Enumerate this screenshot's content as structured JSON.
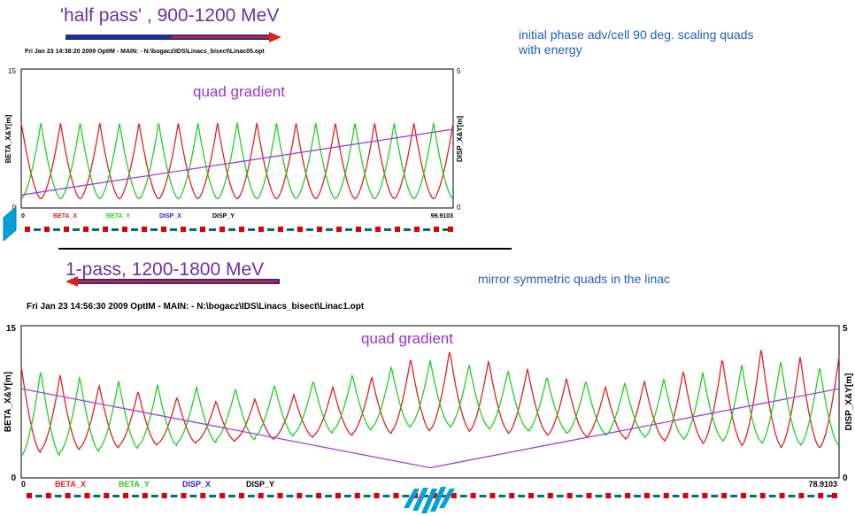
{
  "top_panel": {
    "title": "'half pass' , 900-1200 MeV",
    "note_line1": "initial phase adv/cell 90 deg. scaling quads",
    "note_line2": "with energy",
    "header": "Fri Jan 23 14:38:20 2009    OptIM - MAIN: - N:\\bogacz\\IDS\\Linacs_bisect\\Linac05.opt",
    "annotation": "quad gradient",
    "arrow_colors": {
      "bar": "#1f2f8f",
      "arrow": "#e02020"
    }
  },
  "bottom_panel": {
    "title": "1-pass, 1200-1800 MeV",
    "note": "mirror symmetric quads in the linac",
    "header": "Fri Jan 23 14:56:30 2009    OptIM - MAIN: - N:\\bogacz\\IDS\\Linacs_bisect\\Linac1.opt",
    "annotation": "quad gradient"
  },
  "chart_data": [
    {
      "type": "line",
      "ylabel_left": "BETA_X&Y[m]",
      "ylabel_right": "DISP_X&Y[m]",
      "x_tick_labels": [
        "0",
        "99.9103"
      ],
      "y_left_ticks": [
        "15",
        "0"
      ],
      "y_right_ticks": [
        "5",
        "0"
      ],
      "xlim": [
        0,
        99.9103
      ],
      "ylim_left": [
        0,
        15
      ],
      "ylim_right": [
        0,
        5
      ],
      "legend": [
        "BETA_X",
        "BETA_Y",
        "DISP_X",
        "DISP_Y"
      ],
      "series": [
        {
          "name": "BETA_X",
          "color": "#e02020",
          "periods": 11,
          "min": 1.0,
          "max": 9.2,
          "phase": 0.5
        },
        {
          "name": "BETA_Y",
          "color": "#20d020",
          "periods": 11,
          "min": 1.0,
          "max": 9.2,
          "phase": 0.0
        },
        {
          "name": "quad gradient",
          "color": "#a040e0",
          "x": [
            0,
            99.9103
          ],
          "y": [
            1.4,
            8.5
          ]
        }
      ],
      "colors": {
        "legend": [
          "#e02020",
          "#20d020",
          "#2020e0",
          "#000000"
        ],
        "magnet_red": "#e00000",
        "magnet_teal": "#007070",
        "cavity": "#00a0d8"
      }
    },
    {
      "type": "line",
      "ylabel_left": "BETA_X&Y[m]",
      "ylabel_right": "DISP_X&Y[m]",
      "x_tick_labels": [
        "0",
        "78.9103"
      ],
      "y_left_ticks": [
        "15",
        "0"
      ],
      "y_right_ticks": [
        "5",
        "0"
      ],
      "xlim": [
        0,
        78.9103
      ],
      "ylim_left": [
        0,
        15
      ],
      "ylim_right": [
        0,
        5
      ],
      "legend": [
        "BETA_X",
        "BETA_Y",
        "DISP_X",
        "DISP_Y"
      ],
      "series": [
        {
          "name": "BETA_X",
          "color": "#e02020",
          "periods": 21,
          "phase": 0.5,
          "peaks": [
            11.0,
            10.2,
            9.2,
            8.6,
            8.0,
            7.6,
            7.8,
            8.2,
            9.0,
            10.0,
            11.8,
            12.6,
            11.6,
            10.8,
            9.8,
            9.0,
            9.6,
            10.6,
            11.8,
            12.8,
            12.0
          ],
          "troughs": [
            2.5,
            2.8,
            3.0,
            3.2,
            3.4,
            3.6,
            3.8,
            4.0,
            4.2,
            4.4,
            4.6,
            4.8,
            4.6,
            4.4,
            4.2,
            4.0,
            3.8,
            3.6,
            3.4,
            3.2,
            3.0
          ]
        },
        {
          "name": "BETA_Y",
          "color": "#20d020",
          "periods": 21,
          "phase": 0.0,
          "peaks": [
            10.6,
            10.0,
            9.6,
            9.2,
            9.0,
            8.8,
            9.2,
            9.6,
            10.2,
            11.0,
            11.6,
            11.2,
            10.6,
            10.0,
            9.6,
            9.4,
            9.8,
            10.4,
            11.2,
            11.6,
            11.0
          ],
          "troughs": [
            2.2,
            2.6,
            2.9,
            3.2,
            3.5,
            3.8,
            4.1,
            4.4,
            4.7,
            5.0,
            5.2,
            5.0,
            4.8,
            4.6,
            4.4,
            4.2,
            4.0,
            3.8,
            3.6,
            3.4,
            3.2
          ]
        },
        {
          "name": "quad gradient",
          "color": "#a040e0",
          "x": [
            0,
            39.45,
            78.9103
          ],
          "y": [
            8.8,
            1.0,
            8.8
          ]
        }
      ]
    }
  ]
}
